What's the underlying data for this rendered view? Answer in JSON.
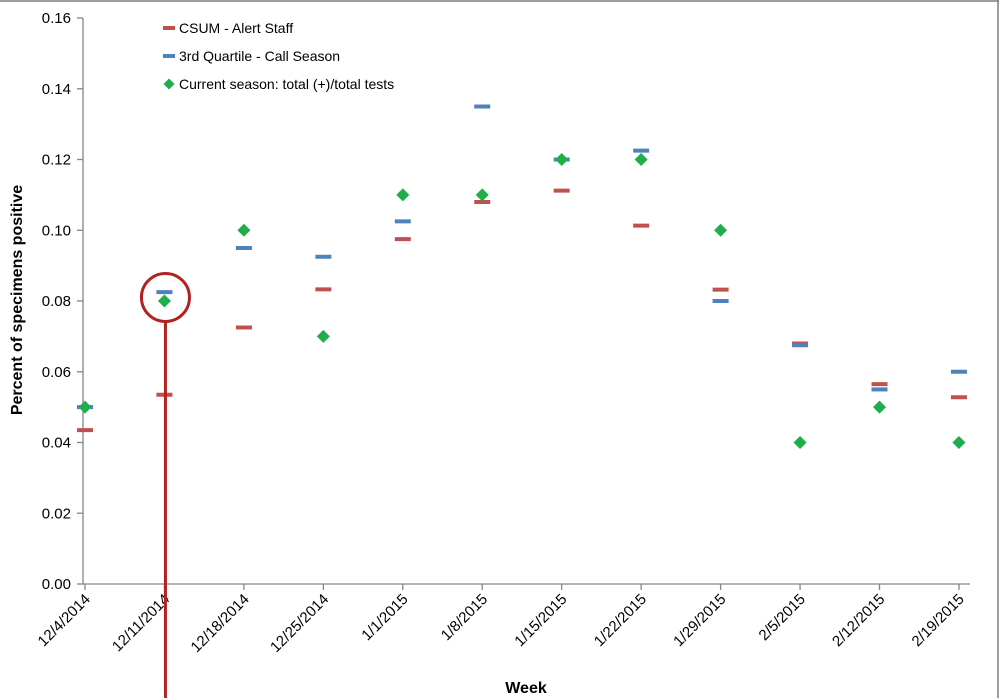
{
  "chart_data": {
    "type": "scatter",
    "title": "",
    "xlabel": "Week",
    "ylabel": "Percent of specimens positive",
    "categories": [
      "12/4/2014",
      "12/11/2014",
      "12/18/2014",
      "12/25/2014",
      "1/1/2015",
      "1/8/2015",
      "1/15/2015",
      "1/22/2015",
      "1/29/2015",
      "2/5/2015",
      "2/12/2015",
      "2/19/2015"
    ],
    "ylim": [
      0,
      0.16
    ],
    "yticks": [
      "0.00",
      "0.02",
      "0.04",
      "0.06",
      "0.08",
      "0.10",
      "0.12",
      "0.14",
      "0.16"
    ],
    "grid": false,
    "legend_position": "top-left",
    "series": [
      {
        "name": "CSUM - Alert Staff",
        "marker": "dash",
        "color": "#c0504d",
        "values": [
          0.0435,
          0.0535,
          0.0725,
          0.0833,
          0.0975,
          0.108,
          0.1112,
          0.1013,
          0.0832,
          0.068,
          0.0565,
          0.0528
        ]
      },
      {
        "name": "3rd Quartile - Call Season",
        "marker": "dash",
        "color": "#4f81bd",
        "values": [
          0.05,
          0.0825,
          0.095,
          0.0925,
          0.1025,
          0.135,
          0.12,
          0.1225,
          0.08,
          0.0675,
          0.055,
          0.06
        ]
      },
      {
        "name": "Current season: total (+)/total tests",
        "marker": "diamond",
        "color": "#1fae4b",
        "values": [
          0.05,
          0.08,
          0.1,
          0.07,
          0.11,
          0.11,
          0.12,
          0.12,
          0.1,
          0.04,
          0.05,
          0.04
        ]
      }
    ],
    "annotation": {
      "type": "circle-with-vertical-line",
      "category": "12/11/2014",
      "y": 0.081,
      "color": "#b22222"
    }
  }
}
